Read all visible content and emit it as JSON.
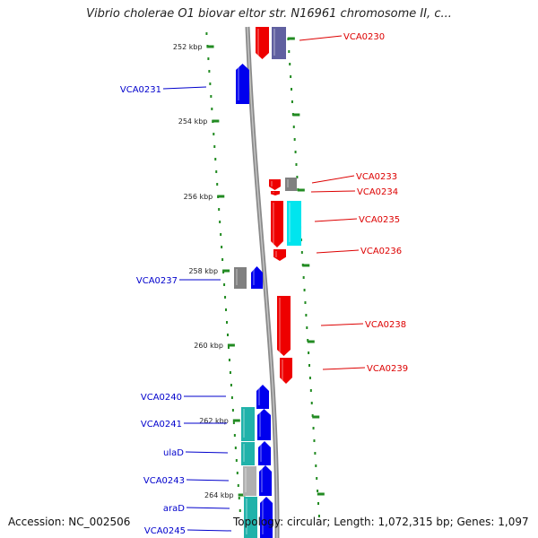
{
  "header": {
    "title": "Vibrio cholerae O1 biovar eltor str. N16961 chromosome II, c..."
  },
  "footer": {
    "accession": "Accession: NC_002506",
    "summary": "Topology: circular; Length: 1,072,315 bp; Genes: 1,097"
  },
  "colors": {
    "reverse_label": "#0000cc",
    "forward_label": "#dd0000",
    "tick": "#228b22",
    "gene_red": "#ee0000",
    "gene_blue": "#0000ee",
    "gene_cyan": "#00e5ee",
    "gene_teal": "#20b2aa",
    "gene_gray": "#808080",
    "gene_lightgray": "#b0b0b0",
    "gene_navy": "#6060a0"
  },
  "kbp_ticks": [
    "252 kbp",
    "254 kbp",
    "256 kbp",
    "258 kbp",
    "260 kbp",
    "262 kbp",
    "264 kbp"
  ],
  "genes_left": [
    "VCA0231",
    "VCA0237",
    "VCA0240",
    "VCA0241",
    "ulaD",
    "VCA0243",
    "araD",
    "VCA0245"
  ],
  "genes_right": [
    "VCA0230",
    "VCA0233",
    "VCA0234",
    "VCA0235",
    "VCA0236",
    "VCA0238",
    "VCA0239"
  ]
}
